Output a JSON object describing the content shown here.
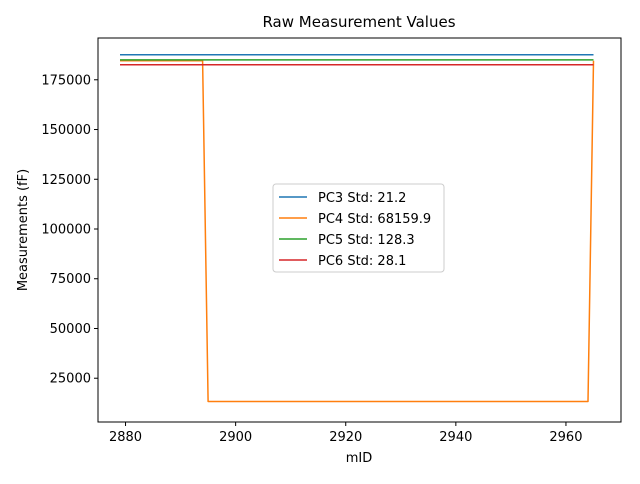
{
  "chart_data": {
    "type": "line",
    "title": "Raw Measurement Values",
    "xlabel": "mID",
    "ylabel": "Measurements (fF)",
    "xlim": [
      2875,
      2970
    ],
    "ylim": [
      3000,
      196000
    ],
    "x_ticks": [
      2880,
      2900,
      2920,
      2940,
      2960
    ],
    "y_ticks": [
      25000,
      50000,
      75000,
      100000,
      125000,
      150000,
      175000
    ],
    "grid": false,
    "legend_position": "center",
    "series": [
      {
        "name": "PC3 Std: 21.2",
        "color": "#1f77b4",
        "points": [
          [
            2879,
            187600
          ],
          [
            2965,
            187600
          ]
        ]
      },
      {
        "name": "PC4 Std: 68159.9",
        "color": "#ff7f0e",
        "points": [
          [
            2879,
            184600
          ],
          [
            2894,
            184600
          ],
          [
            2895,
            13300
          ],
          [
            2964,
            13300
          ],
          [
            2965,
            184600
          ]
        ]
      },
      {
        "name": "PC5 Std: 128.3",
        "color": "#2ca02c",
        "points": [
          [
            2879,
            185000
          ],
          [
            2965,
            185000
          ]
        ]
      },
      {
        "name": "PC6 Std: 28.1",
        "color": "#d62728",
        "points": [
          [
            2879,
            182600
          ],
          [
            2965,
            182600
          ]
        ]
      }
    ]
  }
}
